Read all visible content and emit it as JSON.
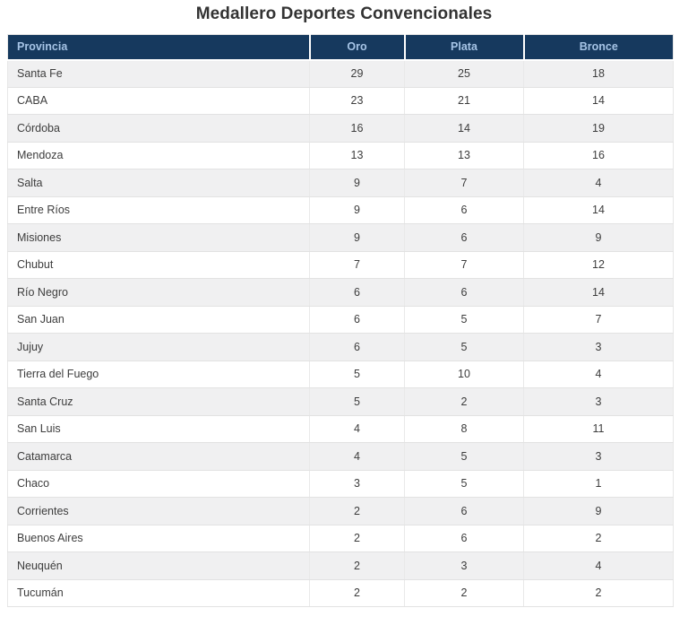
{
  "title": "Medallero Deportes Convencionales",
  "colors": {
    "header_bg": "#16395e",
    "header_text": "#a6c4e6",
    "title_text": "#333333",
    "cell_text": "#3d3d3d",
    "row_alt_bg": "#f0f0f1",
    "row_bg": "#ffffff",
    "border": "#e2e2e2"
  },
  "chart_data": {
    "type": "table",
    "title": "Medallero Deportes Convencionales",
    "columns": [
      "Provincia",
      "Oro",
      "Plata",
      "Bronce"
    ],
    "rows": [
      {
        "provincia": "Santa Fe",
        "oro": 29,
        "plata": 25,
        "bronce": 18
      },
      {
        "provincia": "CABA",
        "oro": 23,
        "plata": 21,
        "bronce": 14
      },
      {
        "provincia": "Córdoba",
        "oro": 16,
        "plata": 14,
        "bronce": 19
      },
      {
        "provincia": "Mendoza",
        "oro": 13,
        "plata": 13,
        "bronce": 16
      },
      {
        "provincia": "Salta",
        "oro": 9,
        "plata": 7,
        "bronce": 4
      },
      {
        "provincia": "Entre Ríos",
        "oro": 9,
        "plata": 6,
        "bronce": 14
      },
      {
        "provincia": "Misiones",
        "oro": 9,
        "plata": 6,
        "bronce": 9
      },
      {
        "provincia": "Chubut",
        "oro": 7,
        "plata": 7,
        "bronce": 12
      },
      {
        "provincia": "Río Negro",
        "oro": 6,
        "plata": 6,
        "bronce": 14
      },
      {
        "provincia": "San Juan",
        "oro": 6,
        "plata": 5,
        "bronce": 7
      },
      {
        "provincia": "Jujuy",
        "oro": 6,
        "plata": 5,
        "bronce": 3
      },
      {
        "provincia": "Tierra del Fuego",
        "oro": 5,
        "plata": 10,
        "bronce": 4
      },
      {
        "provincia": "Santa Cruz",
        "oro": 5,
        "plata": 2,
        "bronce": 3
      },
      {
        "provincia": "San Luis",
        "oro": 4,
        "plata": 8,
        "bronce": 11
      },
      {
        "provincia": "Catamarca",
        "oro": 4,
        "plata": 5,
        "bronce": 3
      },
      {
        "provincia": "Chaco",
        "oro": 3,
        "plata": 5,
        "bronce": 1
      },
      {
        "provincia": "Corrientes",
        "oro": 2,
        "plata": 6,
        "bronce": 9
      },
      {
        "provincia": "Buenos Aires",
        "oro": 2,
        "plata": 6,
        "bronce": 2
      },
      {
        "provincia": "Neuquén",
        "oro": 2,
        "plata": 3,
        "bronce": 4
      },
      {
        "provincia": "Tucumán",
        "oro": 2,
        "plata": 2,
        "bronce": 2
      }
    ]
  }
}
